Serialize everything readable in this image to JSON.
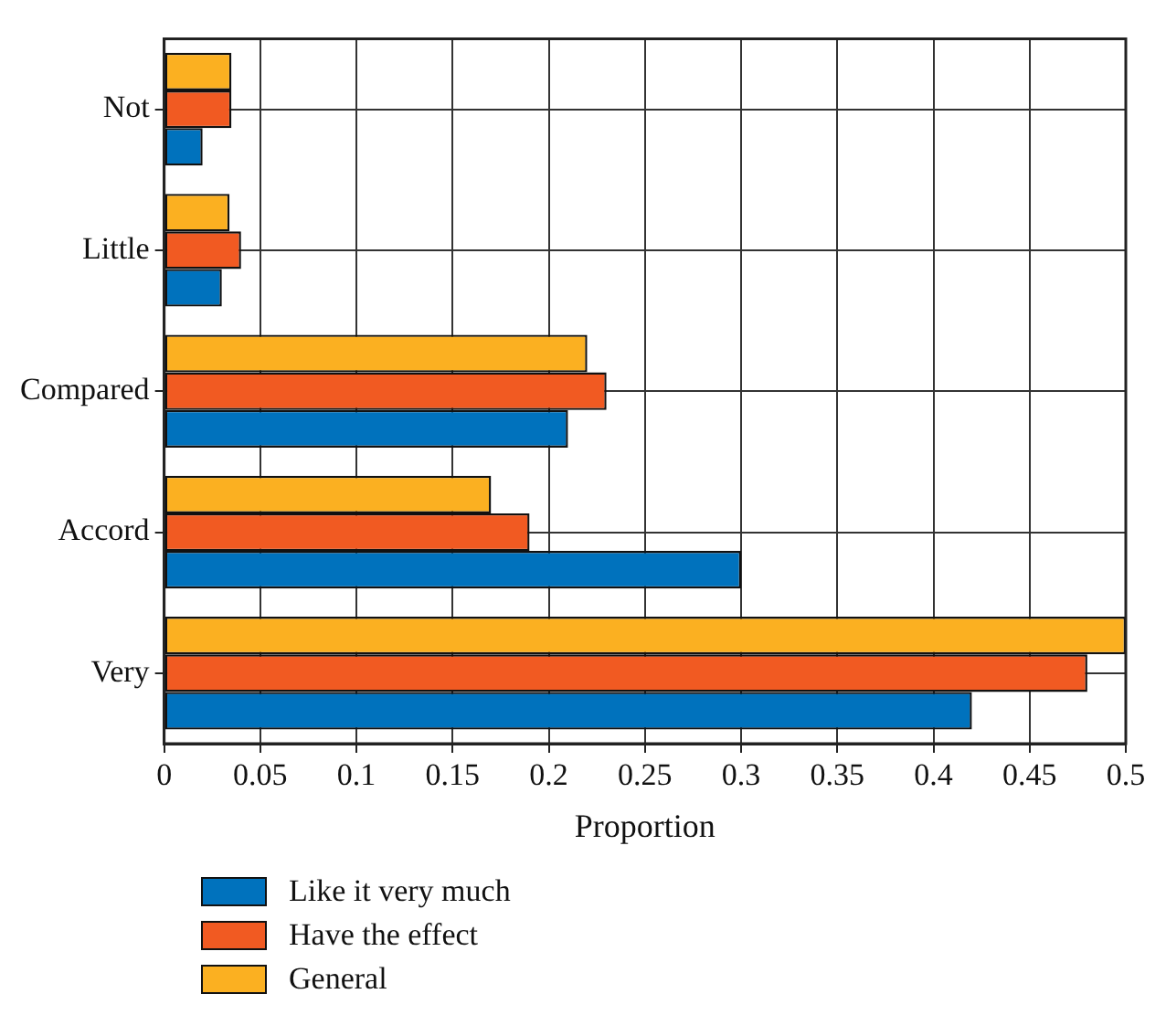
{
  "chart_data": {
    "type": "bar",
    "orientation": "horizontal",
    "xlabel": "Proportion",
    "categories": [
      "Not",
      "Little",
      "Compared",
      "Accord",
      "Very"
    ],
    "series": [
      {
        "name": "Like it very much",
        "color": "#0072bd",
        "values": [
          0.02,
          0.03,
          0.21,
          0.3,
          0.42
        ]
      },
      {
        "name": "Have the effect",
        "color": "#f15a22",
        "values": [
          0.035,
          0.04,
          0.23,
          0.19,
          0.48
        ]
      },
      {
        "name": "General",
        "color": "#fbb021",
        "values": [
          0.035,
          0.034,
          0.22,
          0.17,
          0.5
        ]
      }
    ],
    "xlim": [
      0,
      0.5
    ],
    "xticks": [
      0,
      0.05,
      0.1,
      0.15,
      0.2,
      0.25,
      0.3,
      0.35,
      0.4,
      0.45,
      0.5
    ],
    "grid": true,
    "legend": "bottom"
  }
}
